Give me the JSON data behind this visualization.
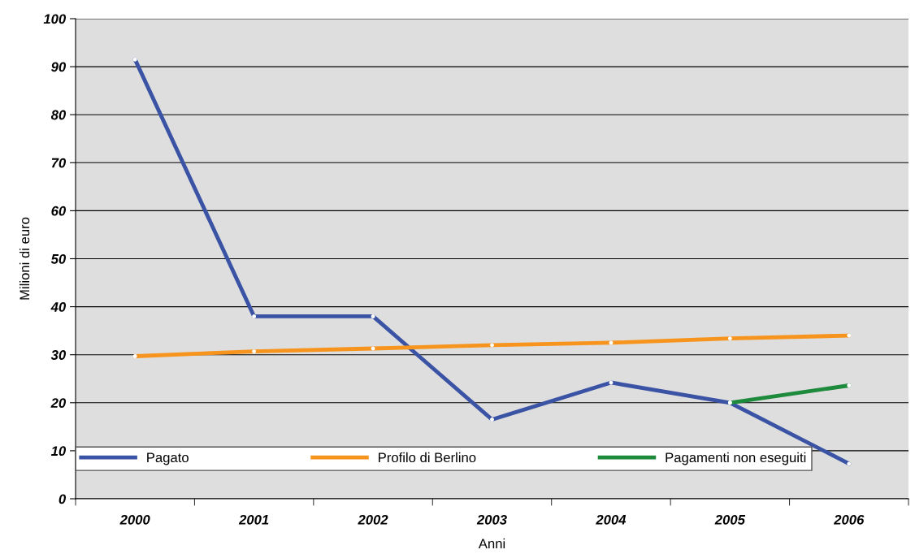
{
  "chart_data": {
    "type": "line",
    "xlabel": "Anni",
    "ylabel": "Milioni di euro",
    "categories": [
      "2000",
      "2001",
      "2002",
      "2003",
      "2004",
      "2005",
      "2006"
    ],
    "series": [
      {
        "name": "Pagato",
        "color": "#3a53a4",
        "values": [
          91.5,
          38,
          38,
          16.5,
          24.2,
          20,
          7.3
        ]
      },
      {
        "name": "Profilo di Berlino",
        "color": "#f7941d",
        "values": [
          29.7,
          30.7,
          31.3,
          32,
          32.5,
          33.4,
          34
        ]
      },
      {
        "name": "Pagamenti non eseguiti",
        "color": "#1e8a3c",
        "values": [
          null,
          null,
          null,
          null,
          null,
          20,
          23.6
        ]
      }
    ],
    "ylim": [
      0,
      100
    ],
    "yticks": [
      0,
      10,
      20,
      30,
      40,
      50,
      60,
      70,
      80,
      90,
      100
    ],
    "grid": "y",
    "legend": "bottom",
    "marker": "circle",
    "line_style": "solid"
  }
}
